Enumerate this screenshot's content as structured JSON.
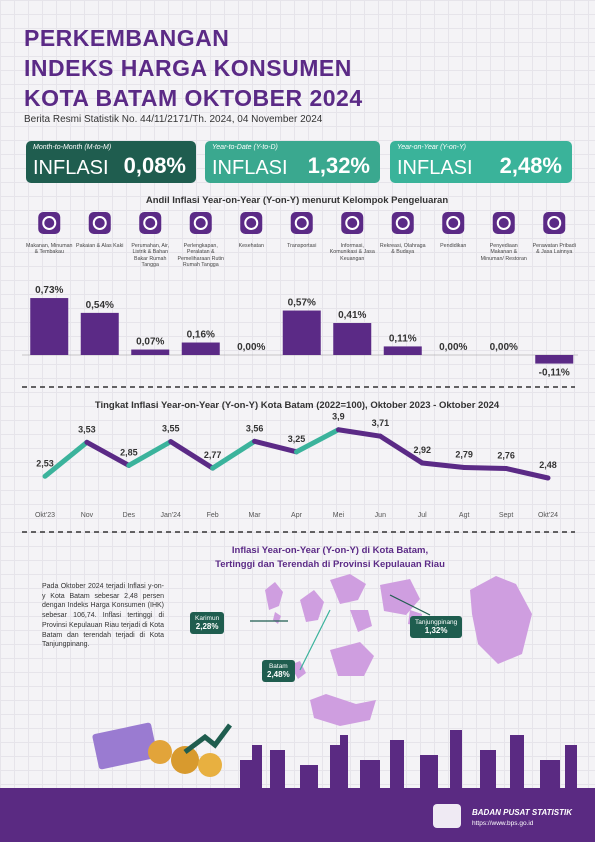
{
  "header": {
    "title_lines": [
      "PERKEMBANGAN",
      "INDEKS HARGA KONSUMEN",
      "KOTA BATAM OKTOBER 2024"
    ],
    "subtitle": "Berita Resmi Statistik No. 44/11/2171/Th. 2024, 04 November 2024"
  },
  "cards": [
    {
      "label": "Month-to-Month (M-to-M)",
      "word": "INFLASI",
      "value": "0,08%"
    },
    {
      "label": "Year-to-Date (Y-to-D)",
      "word": "INFLASI",
      "value": "1,32%"
    },
    {
      "label": "Year-on-Year (Y-on-Y)",
      "word": "INFLASI",
      "value": "2,48%"
    }
  ],
  "chart_data": [
    {
      "type": "bar",
      "title": "Andil Inflasi Year-on-Year (Y-on-Y) menurut Kelompok Pengeluaran",
      "categories": [
        "Makanan, Minuman & Tembakau",
        "Pakaian & Alas Kaki",
        "Perumahan, Air, Listrik & Bahan Bakar Rumah Tangga",
        "Perlengkapan, Peralatan & Pemeliharaan Rutin Rumah Tangga",
        "Kesehatan",
        "Transportasi",
        "Informasi, Komunikasi & Jasa Keuangan",
        "Rekreasi, Olahraga & Budaya",
        "Pendidikan",
        "Penyediaan Makanan & Minuman/ Restoran",
        "Perawatan Pribadi & Jasa Lainnya"
      ],
      "values": [
        0.73,
        0.54,
        0.07,
        0.16,
        0,
        0.57,
        0.41,
        0.11,
        0,
        0,
        -0.11
      ],
      "value_labels": [
        "0,73%",
        "0,54%",
        "0,07%",
        "0,16%",
        "0,00%",
        "0,57%",
        "0,41%",
        "0,11%",
        "0,00%",
        "0,00%",
        "-0,11%"
      ],
      "color": "#5b2a86"
    },
    {
      "type": "line",
      "title": "Tingkat Inflasi Year-on-Year (Y-on-Y) Kota Batam (2022=100), Oktober 2023 - Oktober 2024",
      "categories": [
        "Okt'23",
        "Nov",
        "Des",
        "Jan'24",
        "Feb",
        "Mar",
        "Apr",
        "Mei",
        "Jun",
        "Jul",
        "Agt",
        "Sept",
        "Okt'24"
      ],
      "values": [
        2.53,
        3.53,
        2.85,
        3.55,
        2.77,
        3.56,
        3.25,
        3.9,
        3.71,
        2.92,
        2.79,
        2.76,
        2.48
      ],
      "value_labels": [
        "2,53",
        "3,53",
        "2,85",
        "3,55",
        "2,77",
        "3,56",
        "3,25",
        "3,9",
        "3,71",
        "2,92",
        "2,79",
        "2,76",
        "2,48"
      ],
      "rise_color": "#3bb39c",
      "fall_color": "#5b2a86"
    }
  ],
  "map": {
    "title_lines": [
      "Inflasi Year-on-Year (Y-on-Y) di Kota Batam,",
      "Tertinggi dan Terendah di Provinsi Kepulauan Riau"
    ],
    "paragraph": "Pada Oktober 2024 terjadi Inflasi y-on-y Kota Batam sebesar 2,48 persen dengan Indeks Harga Konsumen (IHK) sebesar 106,74. Inflasi tertinggi di Provinsi Kepulauan Riau terjadi di Kota Batam dan terendah terjadi di Kota Tanjungpinang.",
    "callouts": [
      {
        "name": "Karimun",
        "value": "2,28%"
      },
      {
        "name": "Batam",
        "value": "2,48%"
      },
      {
        "name": "Tanjungpinang",
        "value": "1,32%"
      }
    ]
  },
  "footer": {
    "org": "BADAN PUSAT STATISTIK",
    "url": "https://www.bps.go.id"
  }
}
